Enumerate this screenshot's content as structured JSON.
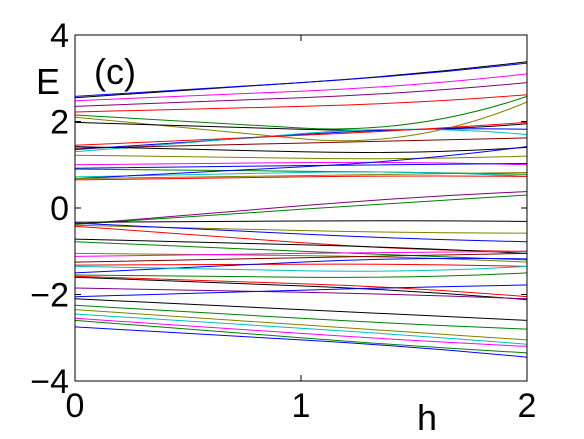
{
  "chart_data": {
    "type": "line",
    "title": "",
    "panel_label": "(c)",
    "xlabel": "h",
    "ylabel": "E",
    "xlim": [
      0,
      2
    ],
    "ylim": [
      -4,
      4
    ],
    "xticks": [
      0,
      1,
      2
    ],
    "yticks": [
      -4,
      -2,
      0,
      2,
      4
    ],
    "xtick_labels": [
      "0",
      "1",
      "2"
    ],
    "ytick_labels": [
      "−4",
      "−2",
      "0",
      "2",
      "4"
    ],
    "grid": false,
    "legend": "none",
    "x": [
      0,
      1,
      2
    ],
    "series": [
      {
        "color": "#000000",
        "values": [
          2.55,
          2.9,
          3.38
        ]
      },
      {
        "color": "#0000ff",
        "values": [
          2.58,
          2.9,
          3.35
        ]
      },
      {
        "color": "#ff00ff",
        "values": [
          2.48,
          2.7,
          3.1
        ]
      },
      {
        "color": "#800080",
        "values": [
          2.35,
          2.55,
          2.9
        ]
      },
      {
        "color": "#ff0000",
        "values": [
          2.22,
          2.35,
          2.62
        ]
      },
      {
        "color": "#008000",
        "values": [
          2.15,
          1.85,
          2.58
        ]
      },
      {
        "color": "#808000",
        "values": [
          2.1,
          1.6,
          2.45
        ]
      },
      {
        "color": "#000000",
        "values": [
          1.98,
          1.82,
          1.95
        ]
      },
      {
        "color": "#0000ff",
        "values": [
          1.35,
          1.7,
          1.82
        ]
      },
      {
        "color": "#00bfbf",
        "values": [
          1.3,
          1.72,
          1.7
        ]
      },
      {
        "color": "#ff0000",
        "values": [
          1.45,
          1.68,
          1.98
        ]
      },
      {
        "color": "#800000",
        "values": [
          1.38,
          1.5,
          1.62
        ]
      },
      {
        "color": "#000000",
        "values": [
          1.42,
          1.3,
          1.4
        ]
      },
      {
        "color": "#808000",
        "values": [
          1.22,
          1.15,
          1.2
        ]
      },
      {
        "color": "#ff00ff",
        "values": [
          1.0,
          1.05,
          1.0
        ]
      },
      {
        "color": "#0000ff",
        "values": [
          0.92,
          0.98,
          1.03
        ]
      },
      {
        "color": "#008000",
        "values": [
          0.9,
          0.85,
          0.78
        ]
      },
      {
        "color": "#00bfbf",
        "values": [
          0.72,
          0.82,
          0.73
        ]
      },
      {
        "color": "#ff0000",
        "values": [
          0.65,
          0.72,
          0.73
        ]
      },
      {
        "color": "#0000ff",
        "values": [
          0.68,
          0.95,
          1.42
        ]
      },
      {
        "color": "#808000",
        "values": [
          0.68,
          0.75,
          0.82
        ]
      },
      {
        "color": "#800080",
        "values": [
          -0.38,
          0.05,
          0.38
        ]
      },
      {
        "color": "#008000",
        "values": [
          -0.38,
          -0.03,
          0.3
        ]
      },
      {
        "color": "#000000",
        "values": [
          -0.33,
          -0.3,
          -0.31
        ]
      },
      {
        "color": "#808000",
        "values": [
          -0.4,
          -0.52,
          -0.58
        ]
      },
      {
        "color": "#0000ff",
        "values": [
          -0.35,
          -0.6,
          -0.78
        ]
      },
      {
        "color": "#ff0000",
        "values": [
          -0.42,
          -0.8,
          -1.0
        ]
      },
      {
        "color": "#000000",
        "values": [
          -0.72,
          -0.85,
          -1.05
        ]
      },
      {
        "color": "#008000",
        "values": [
          -0.78,
          -1.0,
          -1.2
        ]
      },
      {
        "color": "#808000",
        "values": [
          -1.05,
          -1.1,
          -1.25
        ]
      },
      {
        "color": "#ff00ff",
        "values": [
          -1.12,
          -1.05,
          -1.0
        ]
      },
      {
        "color": "#800000",
        "values": [
          -1.25,
          -1.15,
          -1.05
        ]
      },
      {
        "color": "#ff0000",
        "values": [
          -1.32,
          -1.3,
          -1.35
        ]
      },
      {
        "color": "#0000ff",
        "values": [
          -1.5,
          -1.25,
          -1.18
        ]
      },
      {
        "color": "#00bfbf",
        "values": [
          -1.35,
          -1.45,
          -1.35
        ]
      },
      {
        "color": "#008000",
        "values": [
          -1.55,
          -1.6,
          -1.5
        ]
      },
      {
        "color": "#000000",
        "values": [
          -1.6,
          -1.8,
          -2.12
        ]
      },
      {
        "color": "#ff0000",
        "values": [
          -1.58,
          -1.75,
          -2.05
        ]
      },
      {
        "color": "#800080",
        "values": [
          -1.85,
          -1.95,
          -2.1
        ]
      },
      {
        "color": "#0000ff",
        "values": [
          -2.05,
          -1.9,
          -1.78
        ]
      },
      {
        "color": "#000000",
        "values": [
          -2.1,
          -2.35,
          -2.6
        ]
      },
      {
        "color": "#008000",
        "values": [
          -2.25,
          -2.55,
          -2.8
        ]
      },
      {
        "color": "#808000",
        "values": [
          -2.35,
          -2.7,
          -3.05
        ]
      },
      {
        "color": "#00bfbf",
        "values": [
          -2.45,
          -2.78,
          -3.15
        ]
      },
      {
        "color": "#ff00ff",
        "values": [
          -2.55,
          -2.9,
          -3.2
        ]
      },
      {
        "color": "#008000",
        "values": [
          -2.6,
          -3.0,
          -3.35
        ]
      },
      {
        "color": "#0000ff",
        "values": [
          -2.75,
          -3.05,
          -3.45
        ]
      }
    ]
  }
}
